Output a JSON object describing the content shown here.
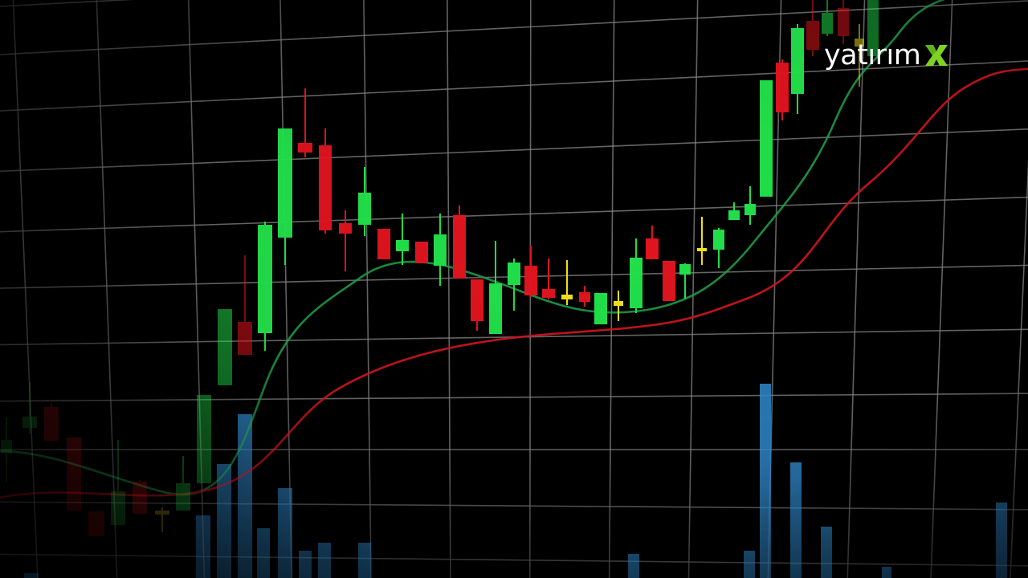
{
  "brand": {
    "text": "yatırım",
    "mark": "X",
    "mark_color": "#7ed321",
    "text_color": "#ffffff"
  },
  "colors": {
    "background": "#000000",
    "grid": "#8a8a8a",
    "bull": "#22e04a",
    "bear": "#e0141e",
    "doji": "#f2e21a",
    "ma_fast": "#1e9e46",
    "ma_slow": "#d0141c",
    "volume": "#2f86c8"
  },
  "icons": [
    "candlestick-chart-icon",
    "brand-x-mark-icon"
  ]
}
